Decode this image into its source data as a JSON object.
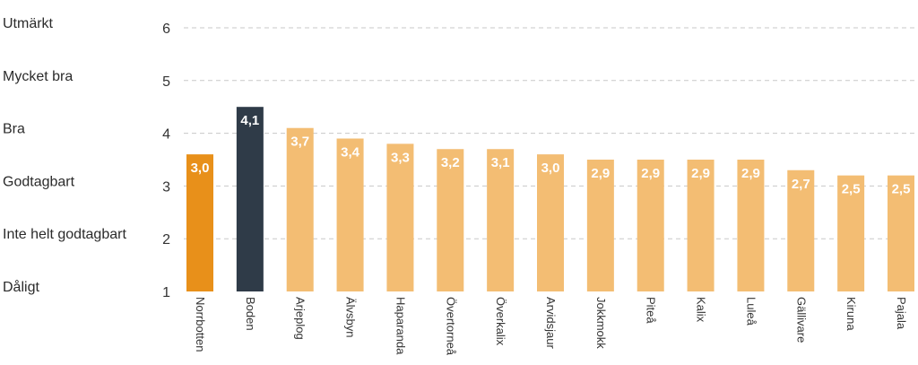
{
  "chart_data": {
    "type": "bar",
    "title": "",
    "xlabel": "",
    "ylabel": "",
    "ylim": [
      1,
      6
    ],
    "yticks": [
      "1",
      "2",
      "3",
      "4",
      "5",
      "6"
    ],
    "rating_labels": [
      "Dåligt",
      "Inte helt godtagbart",
      "Godtagbart",
      "Bra",
      "Mycket bra",
      "Utmärkt"
    ],
    "grid": true,
    "categories": [
      "Norrbotten",
      "Boden",
      "Arjeplog",
      "Älvsbyn",
      "Haparanda",
      "Övertorneå",
      "Överkalix",
      "Arvidsjaur",
      "Jokkmokk",
      "Piteå",
      "Kalix",
      "Luleå",
      "Gällivare",
      "Kiruna",
      "Pajala"
    ],
    "values": [
      3.6,
      4.5,
      4.1,
      3.9,
      3.8,
      3.7,
      3.7,
      3.6,
      3.5,
      3.5,
      3.5,
      3.5,
      3.3,
      3.2,
      3.2
    ],
    "value_labels": [
      "3,0",
      "4,1",
      "3,7",
      "3,4",
      "3,3",
      "3,2",
      "3,1",
      "3,0",
      "2,9",
      "2,9",
      "2,9",
      "2,9",
      "2,7",
      "2,5",
      "2,5"
    ],
    "colors": {
      "Norrbotten": "#e8901a",
      "Boden": "#2f3b48",
      "default": "#f3bd73"
    }
  }
}
